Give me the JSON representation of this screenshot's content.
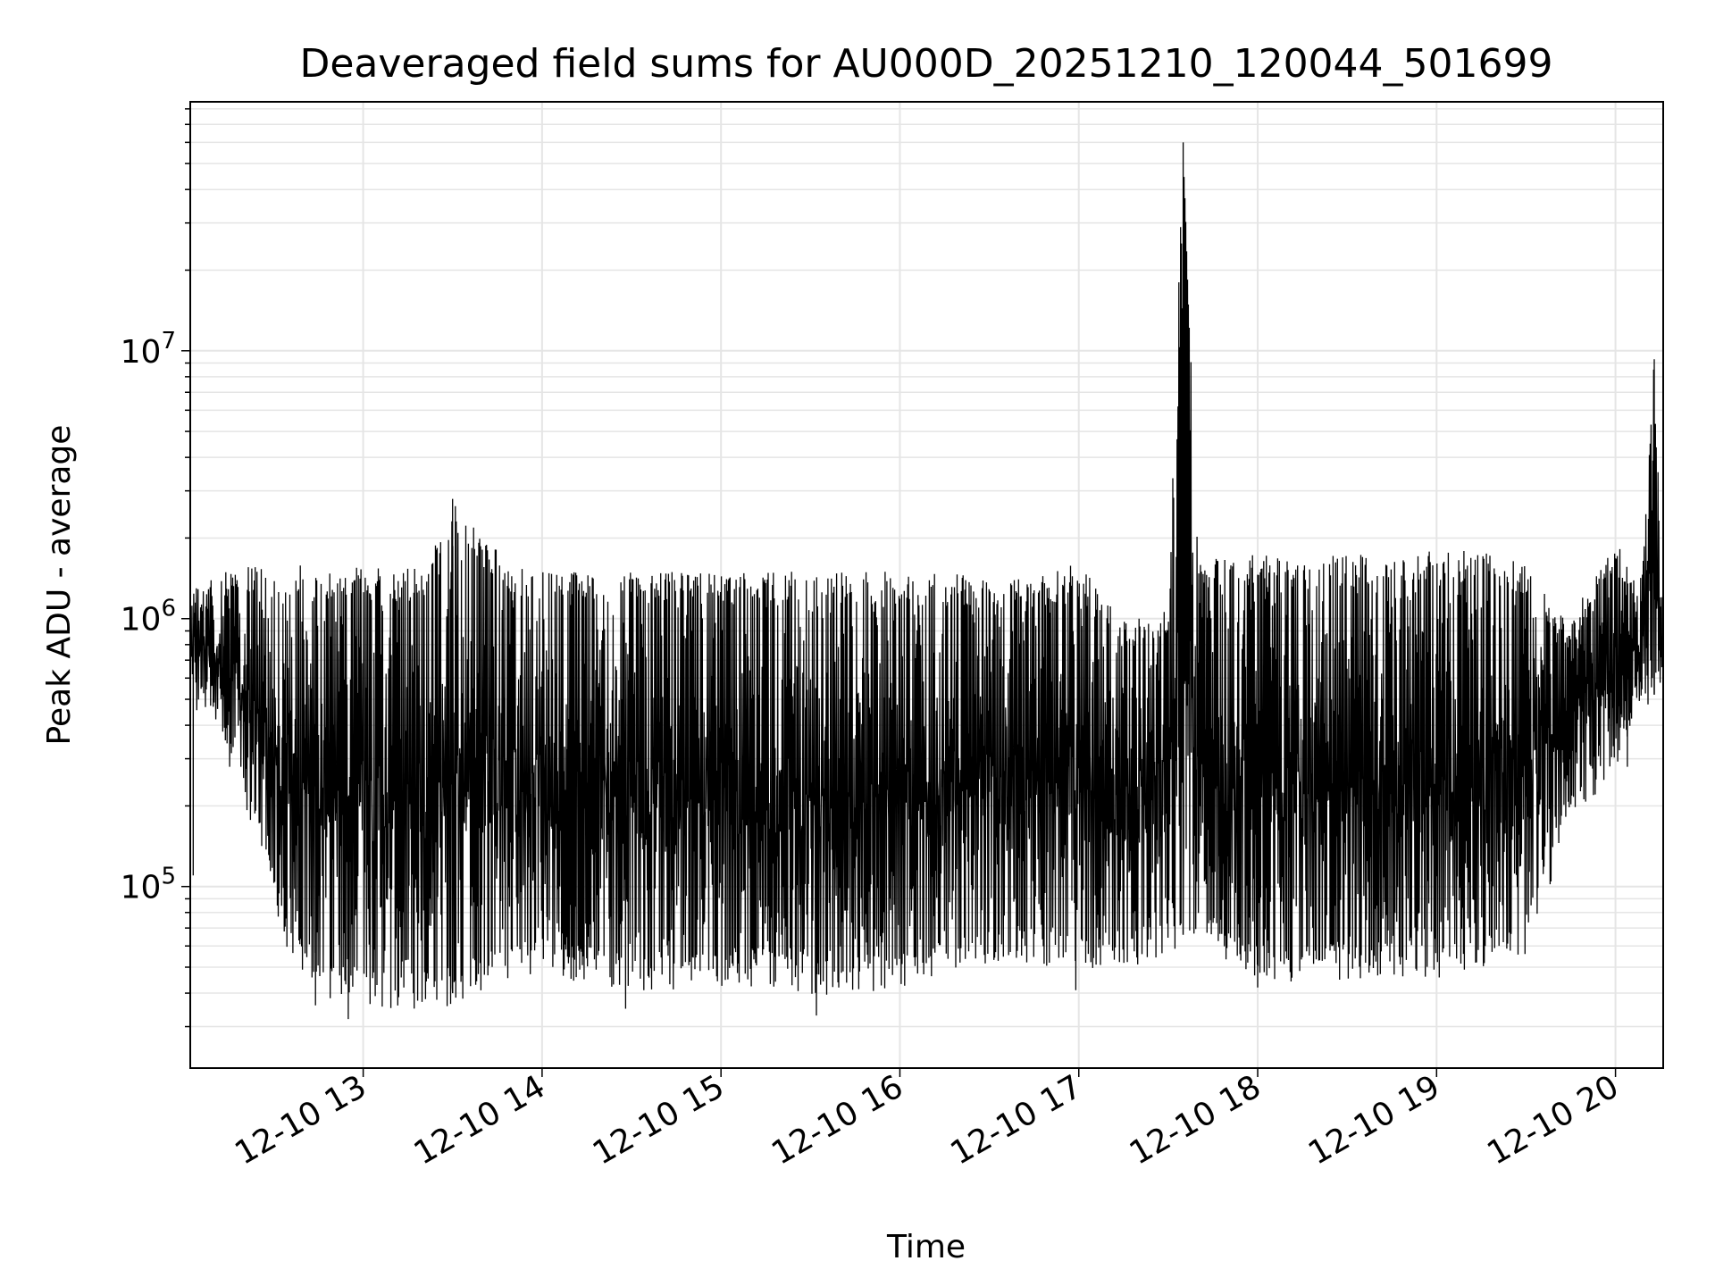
{
  "chart_data": {
    "type": "line",
    "title": "Deaveraged field sums for AU000D_20251210_120044_501699",
    "xlabel": "Time",
    "ylabel": "Peak ADU - average",
    "x_scale": "time",
    "y_scale": "log",
    "xlim": [
      "2025-12-10 12:02",
      "2025-12-10 20:16"
    ],
    "ylim": [
      21000,
      85000000
    ],
    "grid": true,
    "line_color": "#000000",
    "grid_color": "#e5e5e5",
    "x_ticks": [
      {
        "value": "2025-12-10 13:00",
        "label": "12-10 13"
      },
      {
        "value": "2025-12-10 14:00",
        "label": "12-10 14"
      },
      {
        "value": "2025-12-10 15:00",
        "label": "12-10 15"
      },
      {
        "value": "2025-12-10 16:00",
        "label": "12-10 16"
      },
      {
        "value": "2025-12-10 17:00",
        "label": "12-10 17"
      },
      {
        "value": "2025-12-10 18:00",
        "label": "12-10 18"
      },
      {
        "value": "2025-12-10 19:00",
        "label": "12-10 19"
      },
      {
        "value": "2025-12-10 20:00",
        "label": "12-10 20"
      }
    ],
    "y_ticks": [
      {
        "value": 100000,
        "base": "10",
        "exp": "5"
      },
      {
        "value": 1000000,
        "base": "10",
        "exp": "6"
      },
      {
        "value": 10000000,
        "base": "10",
        "exp": "7"
      }
    ],
    "x": [
      "2025-12-10 12:02",
      "2025-12-10 12:10",
      "2025-12-10 12:20",
      "2025-12-10 12:30",
      "2025-12-10 12:35",
      "2025-12-10 12:40",
      "2025-12-10 12:45",
      "2025-12-10 12:50",
      "2025-12-10 13:00",
      "2025-12-10 13:10",
      "2025-12-10 13:20",
      "2025-12-10 13:30",
      "2025-12-10 13:40",
      "2025-12-10 13:50",
      "2025-12-10 14:00",
      "2025-12-10 14:15",
      "2025-12-10 14:30",
      "2025-12-10 14:45",
      "2025-12-10 15:00",
      "2025-12-10 15:15",
      "2025-12-10 15:30",
      "2025-12-10 15:45",
      "2025-12-10 16:00",
      "2025-12-10 16:15",
      "2025-12-10 16:30",
      "2025-12-10 16:45",
      "2025-12-10 17:00",
      "2025-12-10 17:15",
      "2025-12-10 17:30",
      "2025-12-10 17:35",
      "2025-12-10 17:40",
      "2025-12-10 17:50",
      "2025-12-10 18:00",
      "2025-12-10 18:15",
      "2025-12-10 18:30",
      "2025-12-10 18:45",
      "2025-12-10 19:00",
      "2025-12-10 19:15",
      "2025-12-10 19:30",
      "2025-12-10 19:45",
      "2025-12-10 20:00",
      "2025-12-10 20:08",
      "2025-12-10 20:13",
      "2025-12-10 20:16"
    ],
    "series": [
      {
        "peak": [
          1300000,
          1500000,
          1600000,
          1600000,
          1600000,
          1600000,
          1550000,
          1550000,
          1550000,
          1550000,
          1550000,
          2800000,
          2100000,
          1550000,
          1500000,
          1500000,
          1500000,
          1500000,
          1500000,
          1500000,
          1500000,
          1500000,
          1500000,
          1500000,
          1450000,
          1400000,
          1700000,
          1000000,
          1100000,
          60000000,
          1700000,
          1750000,
          1750000,
          1700000,
          1750000,
          1800000,
          1800000,
          1800000,
          1600000,
          1000000,
          2000000,
          1300000,
          9300000,
          1000000
        ],
        "trough": [
          550000,
          400000,
          230000,
          90000,
          62000,
          50000,
          42000,
          40000,
          40000,
          38000,
          38000,
          40000,
          45000,
          48000,
          52000,
          48000,
          45000,
          45000,
          45000,
          48000,
          42000,
          45000,
          45000,
          50000,
          55000,
          55000,
          52000,
          55000,
          60000,
          66000,
          65000,
          55000,
          48000,
          48000,
          50000,
          50000,
          50000,
          55000,
          60000,
          190000,
          300000,
          500000,
          520000,
          600000
        ]
      }
    ],
    "annotations": [
      {
        "x": "2025-12-10 12:03",
        "value": 110000
      },
      {
        "x": "2025-12-10 12:44",
        "value": 36000
      },
      {
        "x": "2025-12-10 12:55",
        "value": 32000
      },
      {
        "x": "2025-12-10 14:28",
        "value": 35000
      },
      {
        "x": "2025-12-10 15:32",
        "value": 33000
      },
      {
        "x": "2025-12-10 16:59",
        "value": 41000
      },
      {
        "x": "2025-12-10 18:00",
        "value": 42000
      },
      {
        "x": "2025-12-10 20:04",
        "value": 280000
      }
    ]
  }
}
